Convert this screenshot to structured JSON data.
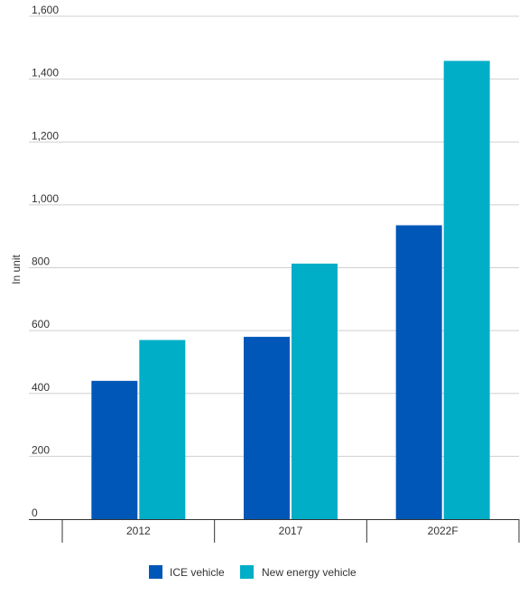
{
  "chart_data": {
    "type": "bar",
    "title": "",
    "xlabel": "",
    "ylabel": "In unit",
    "categories": [
      "2012",
      "2017",
      "2022F"
    ],
    "series": [
      {
        "name": "ICE vehicle",
        "color": "#0057b8",
        "values": [
          440,
          580,
          935
        ]
      },
      {
        "name": "New energy vehicle",
        "color": "#00aec7",
        "values": [
          570,
          813,
          1458
        ]
      }
    ],
    "ylim": [
      0,
      1600
    ],
    "yticks": [
      0,
      200,
      400,
      600,
      800,
      1000,
      1200,
      1400,
      1600
    ],
    "ytick_labels": [
      "0",
      "200",
      "400",
      "600",
      "800",
      "1,000",
      "1,200",
      "1,400",
      "1,600"
    ],
    "grid": true,
    "legend_position": "bottom"
  }
}
